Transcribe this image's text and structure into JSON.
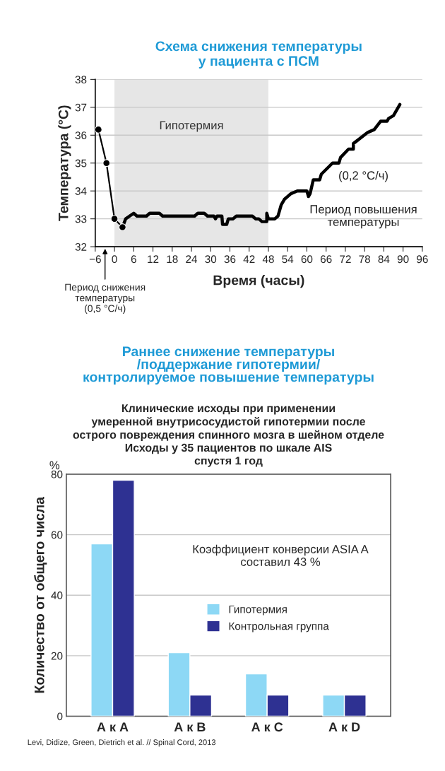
{
  "chart_data": [
    {
      "type": "line",
      "title": "Схема снижения температуры\nу пациента с ПСМ",
      "xlabel": "Время (часы)",
      "ylabel": "Температура (°C)",
      "series": [
        {
          "color": "#000000",
          "marker": "circle",
          "x": [
            -5,
            -2.5,
            0,
            2.5
          ],
          "values": [
            36.2,
            35.0,
            33.0,
            32.7
          ]
        },
        {
          "color": "#000000",
          "marker": "none",
          "x": [
            2.5,
            3.5,
            6,
            7,
            10,
            11,
            14,
            15,
            25,
            26,
            28,
            29,
            31,
            31.5,
            32,
            33.5,
            33.7,
            35,
            35.5,
            37,
            38,
            43,
            44,
            45,
            46,
            47.5,
            47.5,
            48,
            50,
            51,
            52,
            53,
            55,
            57,
            60,
            60.5,
            61,
            62,
            64,
            64.5,
            68,
            70,
            70.5,
            73,
            74.5,
            74.5,
            79,
            81,
            83,
            85,
            85.5,
            87,
            89
          ],
          "values": [
            32.7,
            33.0,
            33.2,
            33.1,
            33.1,
            33.2,
            33.2,
            33.1,
            33.1,
            33.2,
            33.2,
            33.1,
            33.1,
            33.0,
            33.1,
            33.1,
            32.8,
            32.8,
            33.0,
            33.0,
            33.1,
            33.1,
            33.0,
            33.0,
            32.9,
            32.9,
            33.2,
            33.0,
            33.0,
            33.1,
            33.5,
            33.7,
            33.9,
            34.0,
            34.0,
            33.8,
            33.9,
            34.4,
            34.4,
            34.6,
            35.0,
            35.0,
            35.2,
            35.5,
            35.5,
            35.7,
            36.1,
            36.2,
            36.5,
            36.5,
            36.6,
            36.7,
            37.1
          ]
        }
      ],
      "bands": [
        {
          "axis": "x",
          "from": 0,
          "to": 48,
          "label": "Гипотермия",
          "color": "#e6e6e6"
        }
      ],
      "annotations": [
        "(0,2 °C/ч)",
        "Период повышения\nтемпературы",
        "Период снижения\nтемпературы\n(0,5 °C/ч)"
      ],
      "xlim": [
        -6,
        96
      ],
      "xticks": [
        {
          "value": -6,
          "label": "−6"
        },
        0,
        6,
        12,
        18,
        24,
        30,
        36,
        42,
        48,
        54,
        60,
        66,
        72,
        78,
        84,
        90,
        96
      ],
      "ylim": [
        32,
        38
      ],
      "yticks": [
        32,
        33,
        34,
        35,
        36,
        37,
        38
      ],
      "grid": "y",
      "line_style": "solid"
    },
    {
      "type": "bar",
      "title": "Раннее снижение температуры\n/поддержание гипотермии/\nконтролируемое повышение температуры",
      "subtitle": "Клинические исходы при применении\nумеренной внутрисосудистой гипотермии после\nострого повреждения спинного мозга в шейном отделе\nИсходы у 35 пациентов по шкале AIS\nспустя 1 год",
      "ylabel": "Количество от общего числа",
      "categories": [
        "А к А",
        "А к В",
        "А к С",
        "А к D"
      ],
      "series": [
        {
          "name": "Гипотермия",
          "color": "#8dd8f5",
          "values": [
            57,
            21,
            14,
            7
          ]
        },
        {
          "name": "Контрольная группа",
          "color": "#2e3192",
          "values": [
            78,
            7,
            7,
            7
          ]
        }
      ],
      "annotations": [
        "%",
        "Коэффициент конверсии ASIA A\nсоставил 43 %",
        "Levi, Didize, Green, Dietrich et al. // Spinal Cord, 2013"
      ],
      "ylim": [
        0,
        80
      ],
      "yticks": [
        0,
        20,
        40,
        60,
        80
      ],
      "grid": "y",
      "legend": "right"
    }
  ]
}
